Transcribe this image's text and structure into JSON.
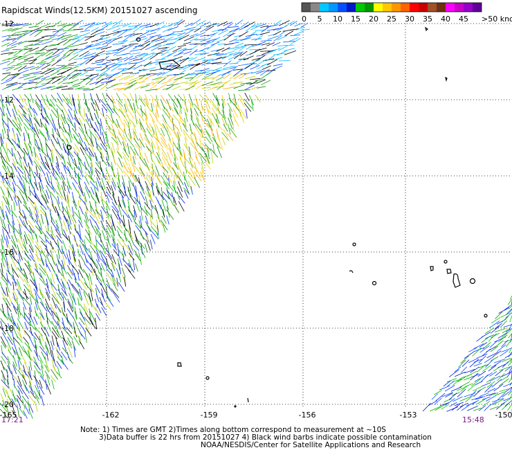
{
  "title": "Rapidscat Winds(12.5KM) 20151027 ascending",
  "legend": {
    "swatches": [
      {
        "color": "#555555"
      },
      {
        "color": "#888888"
      },
      {
        "color": "#00c8ff"
      },
      {
        "color": "#0096ff"
      },
      {
        "color": "#0050ff"
      },
      {
        "color": "#0018c8"
      },
      {
        "color": "#00c800"
      },
      {
        "color": "#009600"
      },
      {
        "color": "#ffff00"
      },
      {
        "color": "#ffc800"
      },
      {
        "color": "#ff9600"
      },
      {
        "color": "#ff6400"
      },
      {
        "color": "#ff0000"
      },
      {
        "color": "#c80000"
      },
      {
        "color": "#a05028"
      },
      {
        "color": "#703010"
      },
      {
        "color": "#ff00ff"
      },
      {
        "color": "#c800c8"
      },
      {
        "color": "#9600c8"
      },
      {
        "color": "#600096"
      }
    ],
    "labels": [
      "0",
      "5",
      "10",
      "15",
      "20",
      "25",
      "30",
      "35",
      "40",
      "45",
      ">50 knots"
    ]
  },
  "map": {
    "lat_labels": [
      "-12",
      "-12",
      "-14",
      "-16",
      "-18",
      "-20"
    ],
    "lon_labels": [
      "-165",
      "-162",
      "-159",
      "-156",
      "-153",
      "-150"
    ],
    "time_labels": {
      "left": "17:21",
      "right": "15:48"
    }
  },
  "notes": {
    "line1": "Note: 1) Times are GMT 2)Times along bottom correspond to measurement at ~10S",
    "line2": "3)Data buffer is 22 hrs from 20151027 4) Black wind barbs indicate possible contamination",
    "line3": "NOAA/NESDIS/Center for Satellite Applications and Research"
  }
}
